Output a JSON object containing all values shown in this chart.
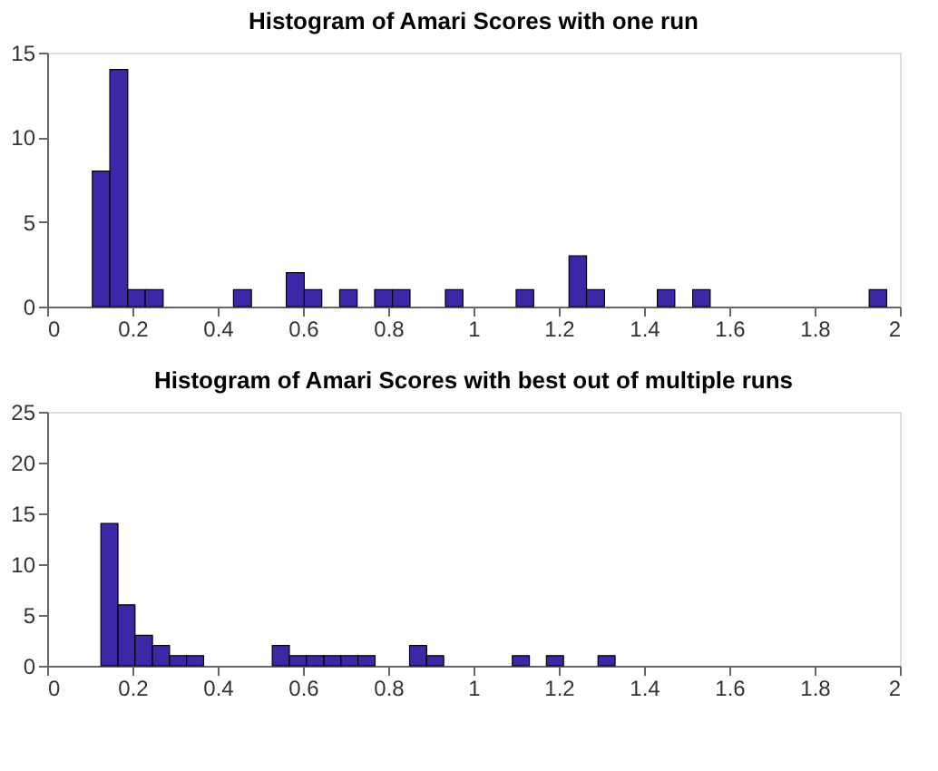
{
  "chart_data": [
    {
      "type": "histogram",
      "title": "Histogram of Amari Scores with one run",
      "color": "#3b28a6",
      "bins": [
        0.106,
        0.147,
        0.189,
        0.23,
        0.272,
        0.313,
        0.354,
        0.396,
        0.437,
        0.479,
        0.52,
        0.561,
        0.603,
        0.644,
        0.686,
        0.727,
        0.768,
        0.81,
        0.851,
        0.893,
        0.934,
        0.975,
        1.017,
        1.058,
        1.1,
        1.141,
        1.182,
        1.224,
        1.265,
        1.307,
        1.348,
        1.389,
        1.431,
        1.472,
        1.514,
        1.555,
        1.596,
        1.638,
        1.679,
        1.721,
        1.762,
        1.803,
        1.845,
        1.886,
        1.928,
        1.969
      ],
      "values": [
        8,
        14,
        1,
        1,
        0,
        0,
        0,
        0,
        1,
        0,
        0,
        2,
        1,
        0,
        1,
        0,
        1,
        1,
        0,
        0,
        1,
        0,
        0,
        0,
        1,
        0,
        0,
        3,
        1,
        0,
        0,
        0,
        1,
        0,
        1,
        0,
        0,
        0,
        0,
        0,
        0,
        0,
        0,
        0,
        1
      ],
      "xlim": [
        0,
        2
      ],
      "xticks": [
        0,
        0.2,
        0.4,
        0.6,
        0.8,
        1,
        1.2,
        1.4,
        1.6,
        1.8,
        2
      ],
      "ylim": [
        0,
        15
      ],
      "yticks": [
        0,
        5,
        10,
        15
      ],
      "grid": false,
      "legend": false
    },
    {
      "type": "histogram",
      "title": "Histogram of Amari Scores with best out of multiple runs",
      "color": "#3b28a6",
      "bins": [
        0.126,
        0.166,
        0.206,
        0.247,
        0.287,
        0.327,
        0.367,
        0.407,
        0.448,
        0.488,
        0.528,
        0.568,
        0.608,
        0.649,
        0.689,
        0.729,
        0.769,
        0.809,
        0.85,
        0.89,
        0.93,
        0.97,
        1.01,
        1.051,
        1.091,
        1.131,
        1.171,
        1.211,
        1.252,
        1.292,
        1.332
      ],
      "values": [
        14,
        6,
        3,
        2,
        1,
        1,
        0,
        0,
        0,
        0,
        2,
        1,
        1,
        1,
        1,
        1,
        0,
        0,
        2,
        1,
        0,
        0,
        0,
        0,
        1,
        0,
        1,
        0,
        0,
        1
      ],
      "xlim": [
        0,
        2
      ],
      "xticks": [
        0,
        0.2,
        0.4,
        0.6,
        0.8,
        1,
        1.2,
        1.4,
        1.6,
        1.8,
        2
      ],
      "ylim": [
        0,
        25
      ],
      "yticks": [
        0,
        5,
        10,
        15,
        20,
        25
      ],
      "grid": false,
      "legend": false
    }
  ]
}
